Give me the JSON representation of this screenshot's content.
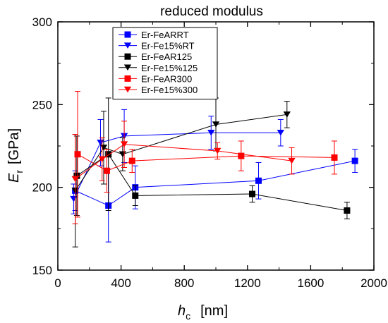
{
  "chart_data": {
    "type": "scatter",
    "title": "reduced modulus",
    "ylabel_main": "E",
    "ylabel_sub": "r",
    "ylabel_unit": "[GPa]",
    "xlabel_main": "h",
    "xlabel_sub": "c",
    "xlabel_unit": "[nm]",
    "xlim": [
      0,
      2000
    ],
    "ylim": [
      150,
      300
    ],
    "x_ticks": [
      0,
      400,
      800,
      1200,
      1600,
      2000
    ],
    "y_ticks": [
      150,
      200,
      250,
      300
    ],
    "x_tick_labels": [
      "0",
      "400",
      "800",
      "1200",
      "1600",
      "2000"
    ],
    "y_tick_labels": [
      "150",
      "200",
      "250",
      "300"
    ],
    "legend_position": "top-center",
    "series": [
      {
        "name": "Er-FeARRT",
        "color": "#0000ff",
        "marker": "square",
        "points": [
          {
            "x": 110,
            "y": 198,
            "err": 12
          },
          {
            "x": 320,
            "y": 189,
            "err": 22
          },
          {
            "x": 490,
            "y": 200,
            "err": 13
          },
          {
            "x": 1270,
            "y": 204,
            "err": 11
          },
          {
            "x": 1880,
            "y": 216,
            "err": 7
          }
        ]
      },
      {
        "name": "Er-Fe15%RT",
        "color": "#0000ff",
        "marker": "triangle-down",
        "points": [
          {
            "x": 100,
            "y": 193,
            "err": 9
          },
          {
            "x": 270,
            "y": 227,
            "err": 14
          },
          {
            "x": 420,
            "y": 231,
            "err": 16
          },
          {
            "x": 970,
            "y": 233,
            "err": 10
          },
          {
            "x": 1410,
            "y": 233,
            "err": 8
          }
        ]
      },
      {
        "name": "Er-FeAR125",
        "color": "#000000",
        "marker": "square",
        "points": [
          {
            "x": 120,
            "y": 207,
            "err": 24
          },
          {
            "x": 320,
            "y": 220,
            "err": 34
          },
          {
            "x": 490,
            "y": 195,
            "err": 6
          },
          {
            "x": 1230,
            "y": 196,
            "err": 5
          },
          {
            "x": 1830,
            "y": 186,
            "err": 5
          }
        ]
      },
      {
        "name": "Er-Fe15%125",
        "color": "#000000",
        "marker": "triangle-down",
        "points": [
          {
            "x": 110,
            "y": 198,
            "err": 34
          },
          {
            "x": 290,
            "y": 224,
            "err": 22
          },
          {
            "x": 410,
            "y": 220,
            "err": 10
          },
          {
            "x": 1000,
            "y": 238,
            "err": 16
          },
          {
            "x": 1450,
            "y": 244,
            "err": 8
          }
        ]
      },
      {
        "name": "Er-FeAR300",
        "color": "#ff0000",
        "marker": "square",
        "points": [
          {
            "x": 125,
            "y": 220,
            "err": 38
          },
          {
            "x": 310,
            "y": 210,
            "err": 13
          },
          {
            "x": 470,
            "y": 216,
            "err": 7
          },
          {
            "x": 1160,
            "y": 219,
            "err": 9
          },
          {
            "x": 1750,
            "y": 218,
            "err": 10
          }
        ]
      },
      {
        "name": "Er-Fe15%300",
        "color": "#ff0000",
        "marker": "triangle-down",
        "points": [
          {
            "x": 110,
            "y": 205,
            "err": 27
          },
          {
            "x": 280,
            "y": 217,
            "err": 13
          },
          {
            "x": 420,
            "y": 226,
            "err": 14
          },
          {
            "x": 1010,
            "y": 222,
            "err": 5
          },
          {
            "x": 1480,
            "y": 216,
            "err": 8
          }
        ]
      }
    ]
  }
}
